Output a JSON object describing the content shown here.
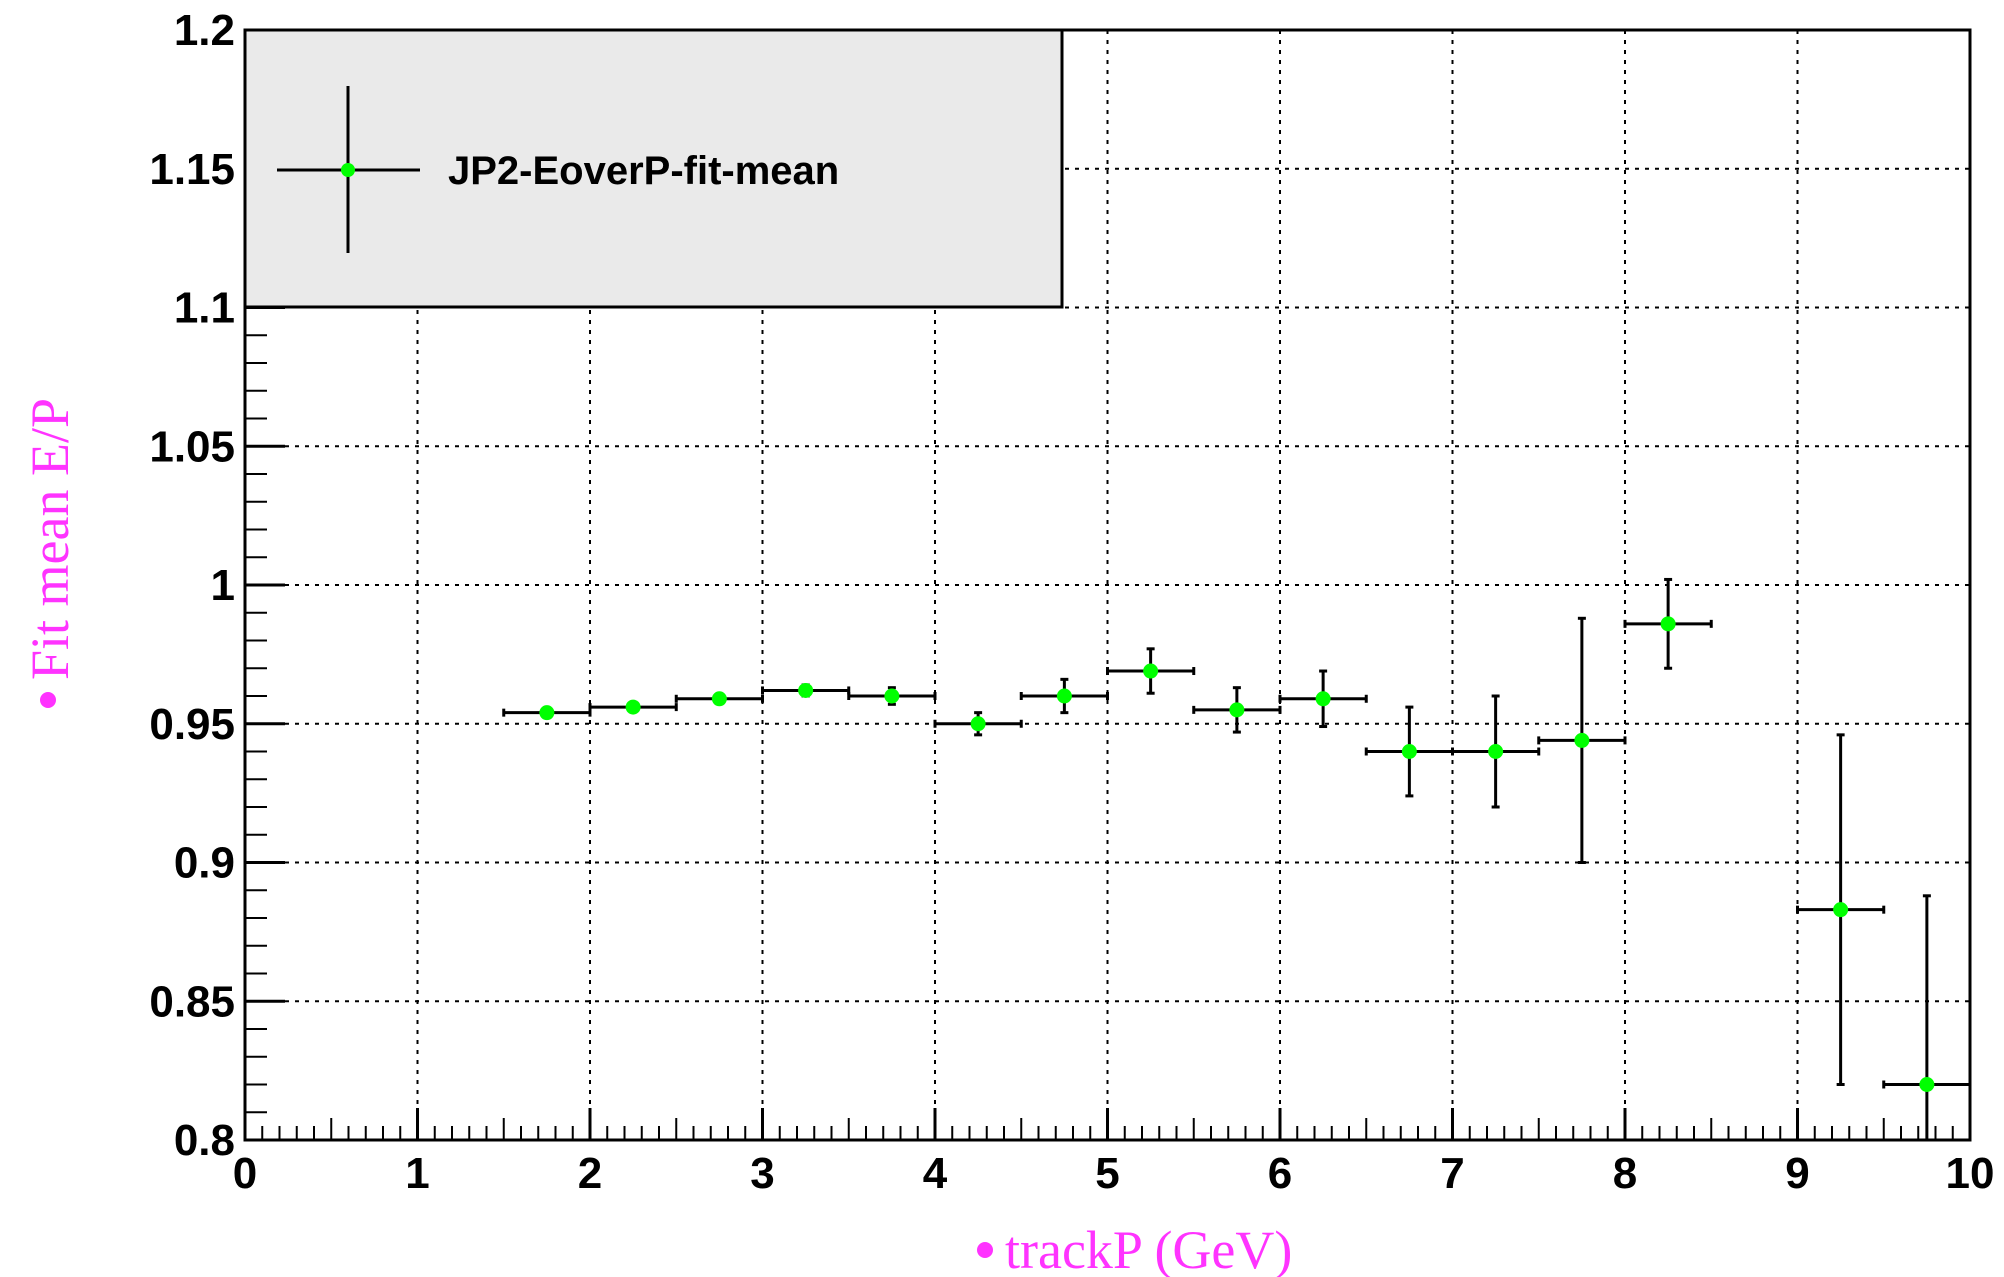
{
  "chart_data": {
    "type": "scatter",
    "title": "",
    "xlabel": "trackP (GeV)",
    "ylabel": "Fit mean E/P",
    "xlim": [
      0,
      10
    ],
    "ylim": [
      0.8,
      1.2
    ],
    "xticks": [
      "0",
      "1",
      "2",
      "3",
      "4",
      "5",
      "6",
      "7",
      "8",
      "9",
      "10"
    ],
    "yticks": [
      "0.8",
      "0.85",
      "0.9",
      "0.95",
      "1",
      "1.05",
      "1.1",
      "1.15",
      "1.2"
    ],
    "grid": true,
    "legend": {
      "position": "top-left",
      "entries": [
        "JP2-EoverP-fit-mean"
      ]
    },
    "series": [
      {
        "name": "JP2-EoverP-fit-mean",
        "color": "#00ff00",
        "points": [
          {
            "x": 1.75,
            "y": 0.954,
            "xerr": 0.25,
            "yerr": 0.0015
          },
          {
            "x": 2.25,
            "y": 0.956,
            "xerr": 0.25,
            "yerr": 0.0015
          },
          {
            "x": 2.75,
            "y": 0.959,
            "xerr": 0.25,
            "yerr": 0.0015
          },
          {
            "x": 3.25,
            "y": 0.962,
            "xerr": 0.25,
            "yerr": 0.002
          },
          {
            "x": 3.75,
            "y": 0.96,
            "xerr": 0.25,
            "yerr": 0.003
          },
          {
            "x": 4.25,
            "y": 0.95,
            "xerr": 0.25,
            "yerr": 0.004
          },
          {
            "x": 4.75,
            "y": 0.96,
            "xerr": 0.25,
            "yerr": 0.006
          },
          {
            "x": 5.25,
            "y": 0.969,
            "xerr": 0.25,
            "yerr": 0.008
          },
          {
            "x": 5.75,
            "y": 0.955,
            "xerr": 0.25,
            "yerr": 0.008
          },
          {
            "x": 6.25,
            "y": 0.959,
            "xerr": 0.25,
            "yerr": 0.01
          },
          {
            "x": 6.75,
            "y": 0.94,
            "xerr": 0.25,
            "yerr": 0.016
          },
          {
            "x": 7.25,
            "y": 0.94,
            "xerr": 0.25,
            "yerr": 0.02
          },
          {
            "x": 7.75,
            "y": 0.944,
            "xerr": 0.25,
            "yerr": 0.044
          },
          {
            "x": 8.25,
            "y": 0.986,
            "xerr": 0.25,
            "yerr": 0.016
          },
          {
            "x": 9.25,
            "y": 0.883,
            "xerr": 0.25,
            "yerr": 0.063
          },
          {
            "x": 9.75,
            "y": 0.82,
            "xerr": 0.25,
            "yerr": 0.068
          }
        ]
      }
    ]
  }
}
